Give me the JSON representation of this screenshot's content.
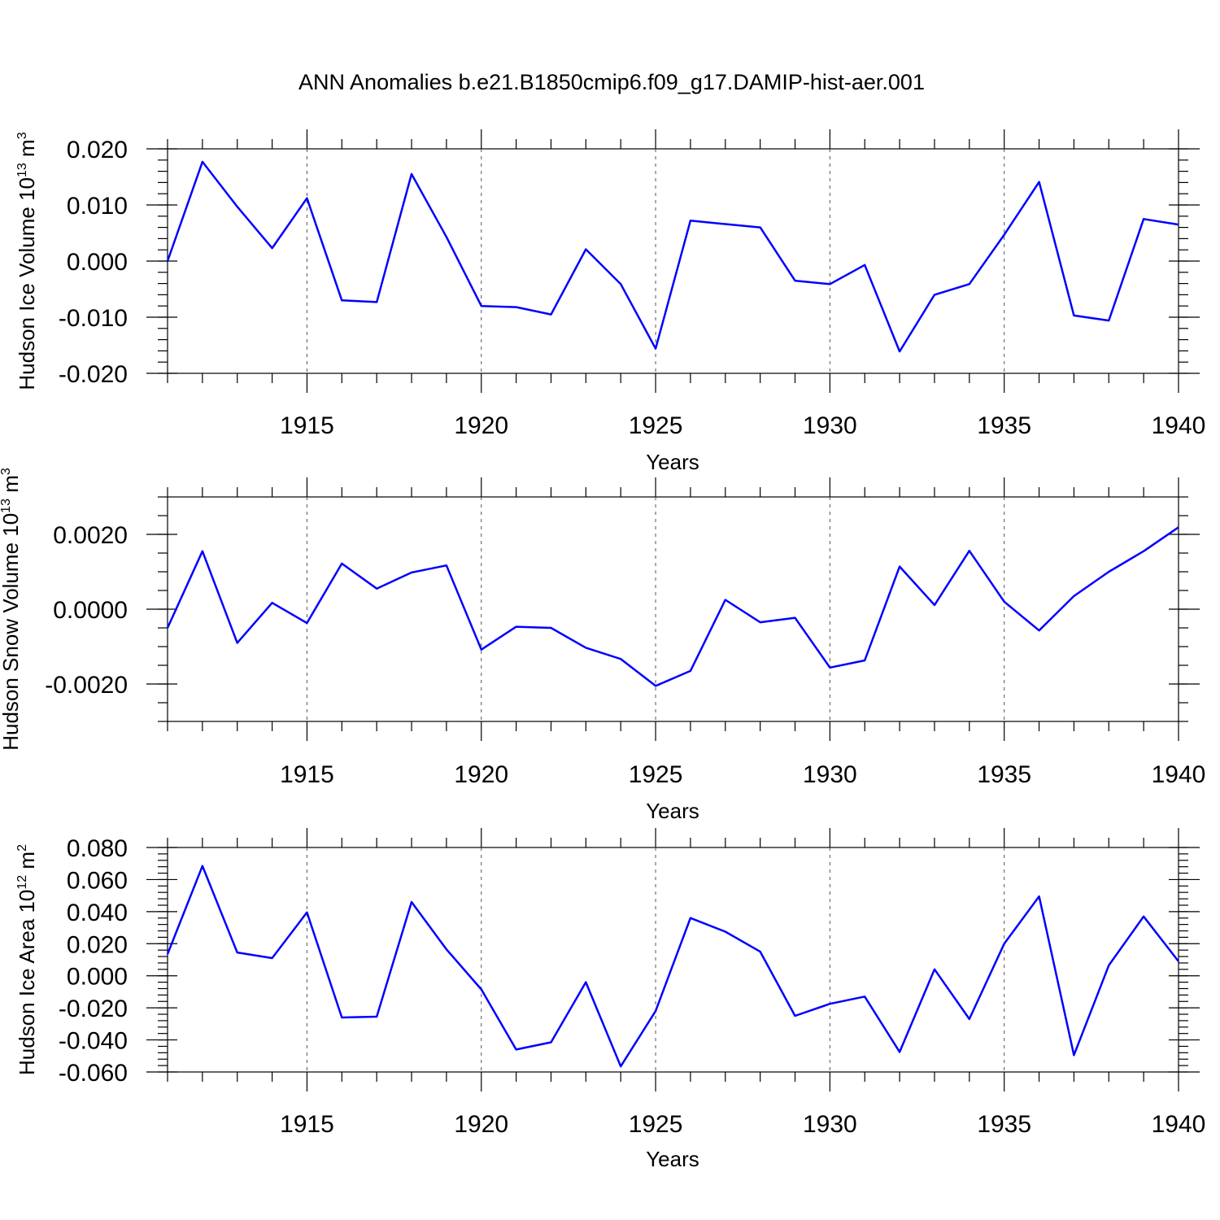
{
  "figure_title": "ANN Anomalies b.e21.B1850cmip6.f09_g17.DAMIP-hist-aer.001",
  "line_color": "#0000ff",
  "chart_data": [
    {
      "type": "line",
      "ylabel": "Hudson Ice Volume 10",
      "ylabel_exp": "13",
      "ylabel_unit": " m",
      "ylabel_unit_exp": "3",
      "xlabel": "Years",
      "xlim": [
        1911,
        1940
      ],
      "ylim": [
        -0.02,
        0.02
      ],
      "yticks": [
        -0.02,
        -0.01,
        0.0,
        0.01,
        0.02
      ],
      "ytick_labels": [
        "-0.020",
        "-0.010",
        "0.000",
        "0.010",
        "0.020"
      ],
      "yminor_step": 0.002,
      "xticks": [
        1915,
        1920,
        1925,
        1930,
        1935,
        1940
      ],
      "xtick_labels": [
        "1915",
        "1920",
        "1925",
        "1930",
        "1935",
        "1940"
      ],
      "x": [
        1911,
        1912,
        1913,
        1914,
        1915,
        1916,
        1917,
        1918,
        1919,
        1920,
        1921,
        1922,
        1923,
        1924,
        1925,
        1926,
        1927,
        1928,
        1929,
        1930,
        1931,
        1932,
        1933,
        1934,
        1935,
        1936,
        1937,
        1938,
        1939,
        1940
      ],
      "values": [
        0.0,
        0.0177,
        0.0097,
        0.0023,
        0.0112,
        -0.007,
        -0.0073,
        0.0155,
        0.0043,
        -0.008,
        -0.0082,
        -0.0095,
        0.0021,
        -0.0041,
        -0.0156,
        0.0072,
        0.0066,
        0.006,
        -0.0035,
        -0.0041,
        -0.0007,
        -0.0161,
        -0.006,
        -0.0041,
        0.0047,
        0.0141,
        -0.0097,
        -0.0106,
        0.0075,
        0.0065
      ]
    },
    {
      "type": "line",
      "ylabel": "Hudson Snow Volume 10",
      "ylabel_exp": "13",
      "ylabel_unit": " m",
      "ylabel_unit_exp": "3",
      "xlabel": "Years",
      "xlim": [
        1911,
        1940
      ],
      "ylim": [
        -0.003,
        0.003
      ],
      "yticks": [
        -0.002,
        0.0,
        0.002
      ],
      "ytick_labels": [
        "-0.0020",
        "0.0000",
        "0.0020"
      ],
      "yminor_step": 0.0005,
      "xticks": [
        1915,
        1920,
        1925,
        1930,
        1935,
        1940
      ],
      "xtick_labels": [
        "1915",
        "1920",
        "1925",
        "1930",
        "1935",
        "1940"
      ],
      "x": [
        1911,
        1912,
        1913,
        1914,
        1915,
        1916,
        1917,
        1918,
        1919,
        1920,
        1921,
        1922,
        1923,
        1924,
        1925,
        1926,
        1927,
        1928,
        1929,
        1930,
        1931,
        1932,
        1933,
        1934,
        1935,
        1936,
        1937,
        1938,
        1939,
        1940
      ],
      "values": [
        -0.0005,
        0.00155,
        -0.0009,
        0.00017,
        -0.00037,
        0.00122,
        0.00055,
        0.00098,
        0.00117,
        -0.00108,
        -0.00047,
        -0.0005,
        -0.00103,
        -0.00133,
        -0.00205,
        -0.00165,
        0.00025,
        -0.00035,
        -0.00023,
        -0.00156,
        -0.00137,
        0.00114,
        0.00011,
        0.00156,
        0.0002,
        -0.00057,
        0.00035,
        0.001,
        0.00155,
        0.00219
      ]
    },
    {
      "type": "line",
      "ylabel": "Hudson Ice Area 10",
      "ylabel_exp": "12",
      "ylabel_unit": " m",
      "ylabel_unit_exp": "2",
      "xlabel": "Years",
      "xlim": [
        1911,
        1940
      ],
      "ylim": [
        -0.06,
        0.08
      ],
      "yticks": [
        -0.06,
        -0.04,
        -0.02,
        0.0,
        0.02,
        0.04,
        0.06,
        0.08
      ],
      "ytick_labels": [
        "-0.060",
        "-0.040",
        "-0.020",
        "0.000",
        "0.020",
        "0.040",
        "0.060",
        "0.080"
      ],
      "yminor_step": 0.004,
      "xticks": [
        1915,
        1920,
        1925,
        1930,
        1935,
        1940
      ],
      "xtick_labels": [
        "1915",
        "1920",
        "1925",
        "1930",
        "1935",
        "1940"
      ],
      "x": [
        1911,
        1912,
        1913,
        1914,
        1915,
        1916,
        1917,
        1918,
        1919,
        1920,
        1921,
        1922,
        1923,
        1924,
        1925,
        1926,
        1927,
        1928,
        1929,
        1930,
        1931,
        1932,
        1933,
        1934,
        1935,
        1936,
        1937,
        1938,
        1939,
        1940
      ],
      "values": [
        0.0135,
        0.0685,
        0.0145,
        0.011,
        0.0395,
        -0.026,
        -0.0255,
        0.046,
        0.0165,
        -0.0085,
        -0.046,
        -0.0415,
        -0.004,
        -0.0565,
        -0.022,
        0.036,
        0.0275,
        0.015,
        -0.025,
        -0.0175,
        -0.013,
        -0.0475,
        0.004,
        -0.027,
        0.02,
        0.0495,
        -0.0495,
        0.0065,
        0.037,
        0.009
      ]
    }
  ]
}
